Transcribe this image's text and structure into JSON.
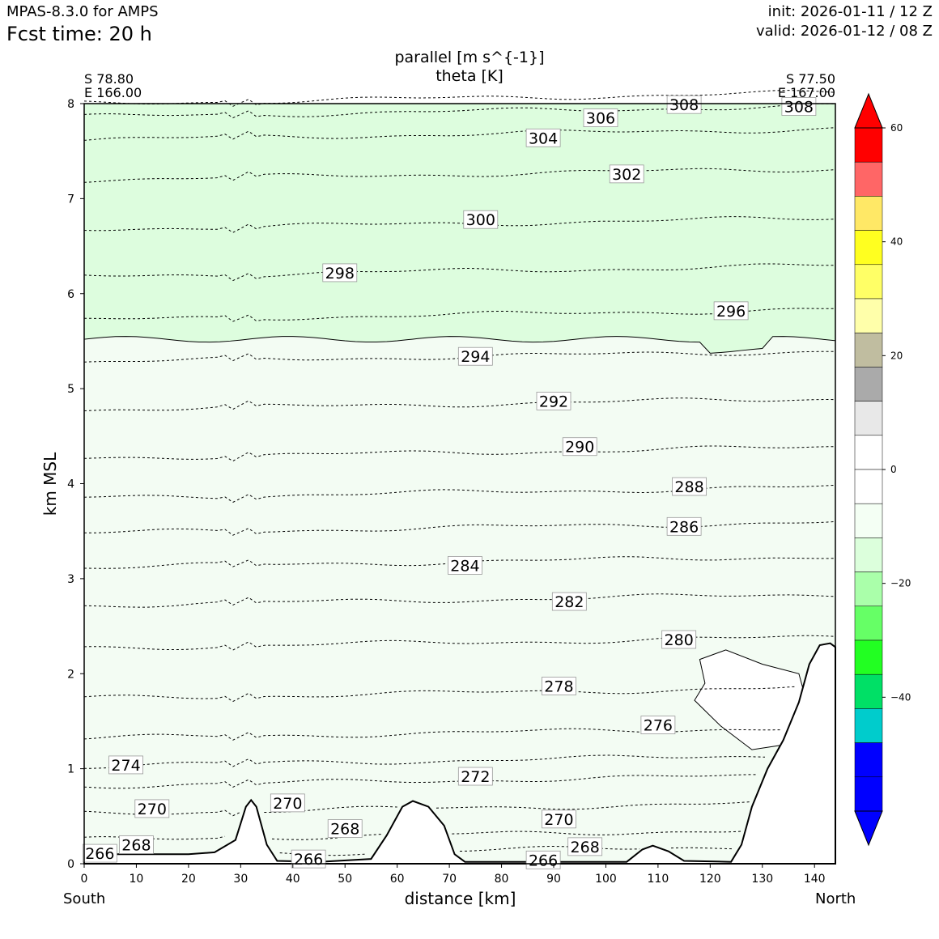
{
  "header": {
    "model": "MPAS-8.3.0 for AMPS",
    "fcst_time": "Fcst time:   20 h",
    "init": "init: 2026-01-11 / 12 Z",
    "valid": "valid: 2026-01-12 / 08 Z"
  },
  "titles": {
    "line1": "parallel [m s^{-1}]",
    "line2": "theta [K]"
  },
  "section": {
    "start_lat": "S 78.80",
    "start_lon": "E 166.00",
    "end_lat": "S 77.50",
    "end_lon": "E 167.00",
    "left_label": "South",
    "right_label": "North"
  },
  "chart_data": {
    "type": "contour",
    "xlabel": "distance [km]",
    "ylabel": "km MSL",
    "xlim": [
      0,
      144
    ],
    "ylim": [
      0,
      8
    ],
    "xticks": [
      0,
      10,
      20,
      30,
      40,
      50,
      60,
      70,
      80,
      90,
      100,
      110,
      120,
      130,
      140
    ],
    "yticks": [
      0,
      1,
      2,
      3,
      4,
      5,
      6,
      7,
      8
    ],
    "grid": false,
    "colorbar": {
      "ticks": [
        60,
        40,
        20,
        0,
        -20,
        -40
      ],
      "colors": [
        "#ff0000",
        "#ff6666",
        "#ffe866",
        "#ffff20",
        "#ffff66",
        "#ffffaa",
        "#c0bda0",
        "#aaaaaa",
        "#e8e8e8",
        "#ffffff",
        "#ffffff",
        "#f4fff4",
        "#dcffdc",
        "#aaffaa",
        "#66ff66",
        "#22ff22",
        "#00e066",
        "#00cccc",
        "#0000ff",
        "#0000ff"
      ],
      "extend": "both"
    },
    "parallel_wind_fill": [
      {
        "range": "-10 to -5",
        "color": "#ddfdde",
        "region": "above ~5.5 km"
      },
      {
        "range": "-5 to 0",
        "color": "#f3fcf3",
        "region": "below ~5.5 km"
      },
      {
        "range": "0 to 5",
        "color": "#ffffff",
        "region": "small pockets near terrain / x 118-138 km, 1-2.2 km"
      }
    ],
    "theta_contours": [
      {
        "value": 266,
        "levels_km": [
          0.08
        ]
      },
      {
        "value": 268,
        "levels_km": [
          0.25
        ]
      },
      {
        "value": 270,
        "levels_km": [
          0.53
        ]
      },
      {
        "value": 272,
        "levels_km": [
          0.82
        ]
      },
      {
        "value": 274,
        "levels_km": [
          1.03
        ]
      },
      {
        "value": 276,
        "levels_km": [
          1.32
        ]
      },
      {
        "value": 278,
        "levels_km": [
          1.74
        ]
      },
      {
        "value": 280,
        "levels_km": [
          2.27
        ]
      },
      {
        "value": 282,
        "levels_km": [
          2.72
        ]
      },
      {
        "value": 284,
        "levels_km": [
          3.12
        ]
      },
      {
        "value": 286,
        "levels_km": [
          3.48
        ]
      },
      {
        "value": 288,
        "levels_km": [
          3.85
        ]
      },
      {
        "value": 290,
        "levels_km": [
          4.27
        ]
      },
      {
        "value": 292,
        "levels_km": [
          4.78
        ]
      },
      {
        "value": 294,
        "levels_km": [
          5.28
        ]
      },
      {
        "value": 296,
        "levels_km": [
          5.72
        ]
      },
      {
        "value": 298,
        "levels_km": [
          6.18
        ]
      },
      {
        "value": 300,
        "levels_km": [
          6.68
        ]
      },
      {
        "value": 302,
        "levels_km": [
          7.2
        ]
      },
      {
        "value": 304,
        "levels_km": [
          7.62
        ]
      },
      {
        "value": 306,
        "levels_km": [
          7.86
        ]
      },
      {
        "value": 308,
        "levels_km": [
          8.0
        ]
      }
    ],
    "contour_labels": [
      {
        "text": "308",
        "x": 115,
        "y": 7.99
      },
      {
        "text": "308",
        "x": 137,
        "y": 7.97
      },
      {
        "text": "306",
        "x": 99,
        "y": 7.85
      },
      {
        "text": "304",
        "x": 88,
        "y": 7.64
      },
      {
        "text": "302",
        "x": 104,
        "y": 7.26
      },
      {
        "text": "300",
        "x": 76,
        "y": 6.78
      },
      {
        "text": "298",
        "x": 49,
        "y": 6.22
      },
      {
        "text": "296",
        "x": 124,
        "y": 5.82
      },
      {
        "text": "294",
        "x": 75,
        "y": 5.34
      },
      {
        "text": "292",
        "x": 90,
        "y": 4.87
      },
      {
        "text": "290",
        "x": 95,
        "y": 4.39
      },
      {
        "text": "288",
        "x": 116,
        "y": 3.97
      },
      {
        "text": "286",
        "x": 115,
        "y": 3.55
      },
      {
        "text": "284",
        "x": 73,
        "y": 3.14
      },
      {
        "text": "282",
        "x": 93,
        "y": 2.76
      },
      {
        "text": "280",
        "x": 114,
        "y": 2.36
      },
      {
        "text": "278",
        "x": 91,
        "y": 1.87
      },
      {
        "text": "276",
        "x": 110,
        "y": 1.46
      },
      {
        "text": "274",
        "x": 8,
        "y": 1.04
      },
      {
        "text": "272",
        "x": 75,
        "y": 0.92
      },
      {
        "text": "270",
        "x": 13,
        "y": 0.58
      },
      {
        "text": "270",
        "x": 39,
        "y": 0.64
      },
      {
        "text": "270",
        "x": 91,
        "y": 0.47
      },
      {
        "text": "268",
        "x": 10,
        "y": 0.2
      },
      {
        "text": "268",
        "x": 50,
        "y": 0.37
      },
      {
        "text": "268",
        "x": 96,
        "y": 0.18
      },
      {
        "text": "266",
        "x": 3,
        "y": 0.11
      },
      {
        "text": "266",
        "x": 43,
        "y": 0.05
      },
      {
        "text": "266",
        "x": 88,
        "y": 0.04
      }
    ],
    "terrain_km": [
      [
        0,
        0.1
      ],
      [
        20,
        0.1
      ],
      [
        25,
        0.12
      ],
      [
        29,
        0.25
      ],
      [
        31,
        0.6
      ],
      [
        32,
        0.67
      ],
      [
        33,
        0.6
      ],
      [
        35,
        0.2
      ],
      [
        37,
        0.03
      ],
      [
        45,
        0.02
      ],
      [
        55,
        0.05
      ],
      [
        58,
        0.3
      ],
      [
        61,
        0.6
      ],
      [
        63,
        0.66
      ],
      [
        66,
        0.6
      ],
      [
        69,
        0.4
      ],
      [
        71,
        0.1
      ],
      [
        73,
        0.02
      ],
      [
        104,
        0.02
      ],
      [
        107,
        0.15
      ],
      [
        109,
        0.19
      ],
      [
        112,
        0.13
      ],
      [
        115,
        0.03
      ],
      [
        124,
        0.02
      ],
      [
        126,
        0.2
      ],
      [
        128,
        0.6
      ],
      [
        131,
        1.0
      ],
      [
        134,
        1.3
      ],
      [
        137,
        1.7
      ],
      [
        139,
        2.1
      ],
      [
        141,
        2.3
      ],
      [
        143,
        2.32
      ],
      [
        144,
        2.28
      ]
    ]
  }
}
